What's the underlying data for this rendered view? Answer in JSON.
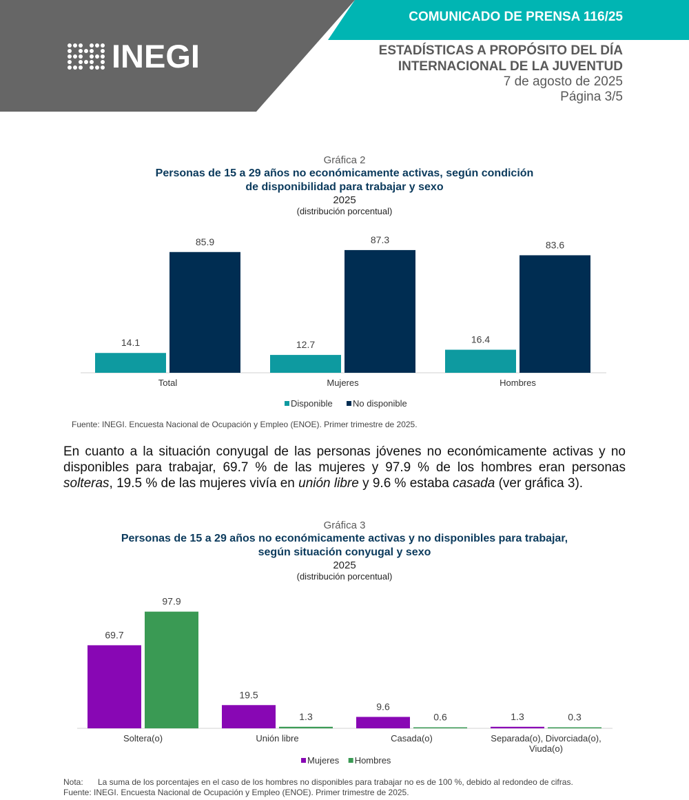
{
  "header": {
    "press_label": "COMUNICADO DE PRENSA 116/25",
    "logo_text": "INEGI",
    "title_line1": "ESTADÍSTICAS A PROPÓSITO DEL DÍA",
    "title_line2": "INTERNACIONAL DE LA JUVENTUD",
    "date": "7 de agosto de 2025",
    "page": "Página 3/5",
    "colors": {
      "gray": "#666666",
      "teal": "#00b5b3"
    }
  },
  "chart2": {
    "number": "Gráfica 2",
    "title_line1": "Personas de 15 a 29 años no económicamente activas, según condición",
    "title_line2": "de disponibilidad para trabajar y sexo",
    "year": "2025",
    "unit": "(distribución porcentual)",
    "source": "Fuente: INEGI. Encuesta Nacional de Ocupación y Empleo (ENOE). Primer trimestre de 2025."
  },
  "paragraph": {
    "p1": "En cuanto a la situación conyugal de las personas jóvenes no económicamente activas y no disponibles para trabajar, 69.7 % de las mujeres y 97.9 % de los hombres eran personas ",
    "i1": "solteras",
    "p2": ", 19.5 % de las mujeres vivía en ",
    "i2": "unión libre",
    "p3": " y 9.6 % estaba ",
    "i3": "casada",
    "p4": " (ver gráfica 3)."
  },
  "chart3": {
    "number": "Gráfica 3",
    "title_line1": "Personas de 15 a 29 años no económicamente activas y no disponibles para trabajar,",
    "title_line2": "según situación conyugal y sexo",
    "year": "2025",
    "unit": "(distribución porcentual)",
    "note_label": "Nota:",
    "note": "La suma de los porcentajes en el caso de los hombres no disponibles para trabajar no es de 100 %, debido al redondeo de cifras.",
    "source": "Fuente: INEGI. Encuesta Nacional de Ocupación y Empleo (ENOE). Primer trimestre de 2025."
  },
  "chart_data": [
    {
      "type": "bar",
      "title": "Personas de 15 a 29 años no económicamente activas, según condición de disponibilidad para trabajar y sexo",
      "categories": [
        "Total",
        "Mujeres",
        "Hombres"
      ],
      "series": [
        {
          "name": "Disponible",
          "values": [
            14.1,
            12.7,
            16.4
          ],
          "color": "#0e9aa0"
        },
        {
          "name": "No disponible",
          "values": [
            85.9,
            87.3,
            83.6
          ],
          "color": "#002d52"
        }
      ],
      "ylim": [
        0,
        100
      ],
      "legend": "bottom",
      "grid": false
    },
    {
      "type": "bar",
      "title": "Personas de 15 a 29 años no económicamente activas y no disponibles para trabajar, según situación conyugal y sexo",
      "categories": [
        "Soltera(o)",
        "Unión libre",
        "Casada(o)",
        "Separada(o), Divorciada(o), Viuda(o)"
      ],
      "category_lines": [
        [
          "Soltera(o)"
        ],
        [
          "Unión libre"
        ],
        [
          "Casada(o)"
        ],
        [
          "Separada(o), Divorciada(o),",
          "Viuda(o)"
        ]
      ],
      "series": [
        {
          "name": "Mujeres",
          "values": [
            69.7,
            19.5,
            9.6,
            1.3
          ],
          "color": "#8807b4"
        },
        {
          "name": "Hombres",
          "values": [
            97.9,
            1.3,
            0.6,
            0.3
          ],
          "color": "#3a9a54"
        }
      ],
      "ylim": [
        0,
        100
      ],
      "legend": "bottom",
      "grid": false
    }
  ]
}
